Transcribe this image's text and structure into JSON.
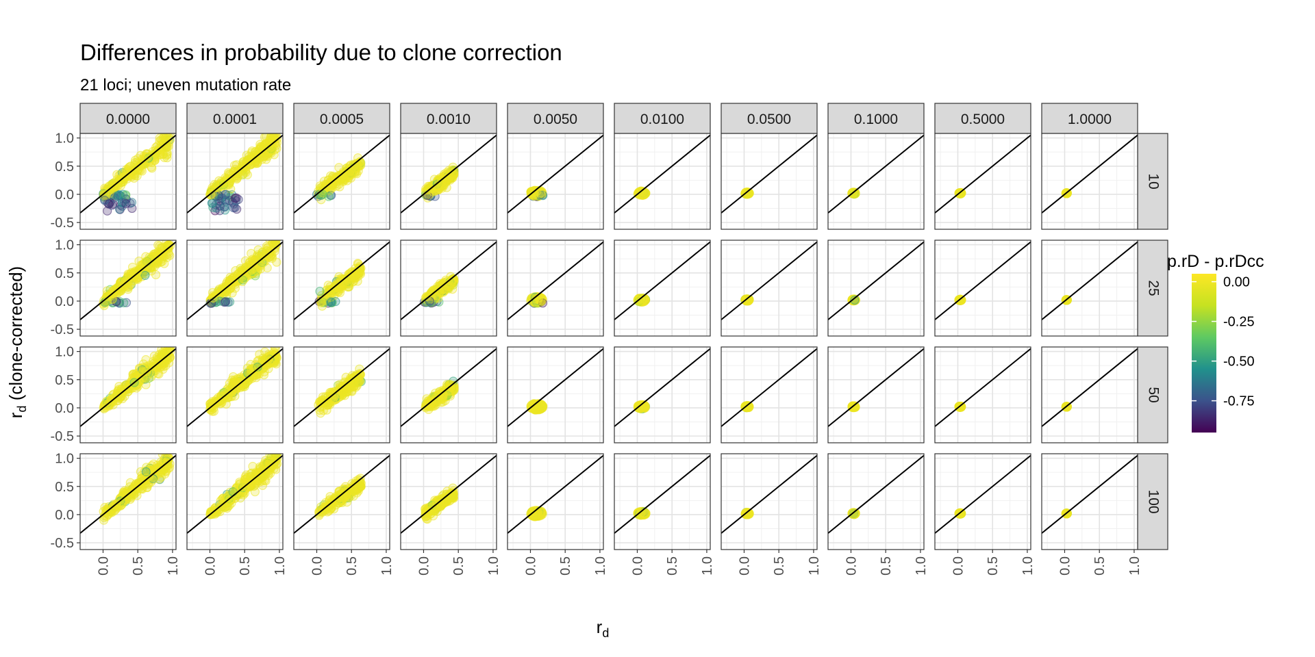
{
  "chart_data": {
    "type": "scatter",
    "title": "Differences in probability due to clone correction",
    "subtitle": "21 loci; uneven mutation rate",
    "xlabel_main": "r",
    "xlabel_sub": "d",
    "ylabel_main": "r",
    "ylabel_sub": "d",
    "ylabel_suffix": " (clone-corrected)",
    "col_facets": [
      "0.0000",
      "0.0001",
      "0.0005",
      "0.0010",
      "0.0050",
      "0.0100",
      "0.0500",
      "0.1000",
      "0.5000",
      "1.0000"
    ],
    "row_facets": [
      "10",
      "25",
      "50",
      "100"
    ],
    "xlim": [
      -0.33,
      1.05
    ],
    "ylim": [
      -0.62,
      1.08
    ],
    "x_ticks": [
      0.0,
      0.5,
      1.0
    ],
    "x_tick_labels": [
      "0.0",
      "0.5",
      "1.0"
    ],
    "y_ticks": [
      -0.5,
      0.0,
      0.5,
      1.0
    ],
    "y_tick_labels": [
      "-0.5",
      "0.0",
      "0.5",
      "1.0"
    ],
    "reference_line": "y = x",
    "grid": true,
    "point_alpha": 0.3,
    "legend": {
      "title": "p.rD - p.rDcc",
      "position": "right",
      "type": "colorbar",
      "range": [
        -0.95,
        0.05
      ],
      "breaks": [
        0.0,
        -0.25,
        -0.5,
        -0.75
      ],
      "labels": [
        "0.00",
        "-0.25",
        "-0.50",
        "-0.75"
      ],
      "colors": [
        "#440154",
        "#3b528b",
        "#21918c",
        "#5ec962",
        "#c6e221",
        "#fde725"
      ]
    }
  }
}
